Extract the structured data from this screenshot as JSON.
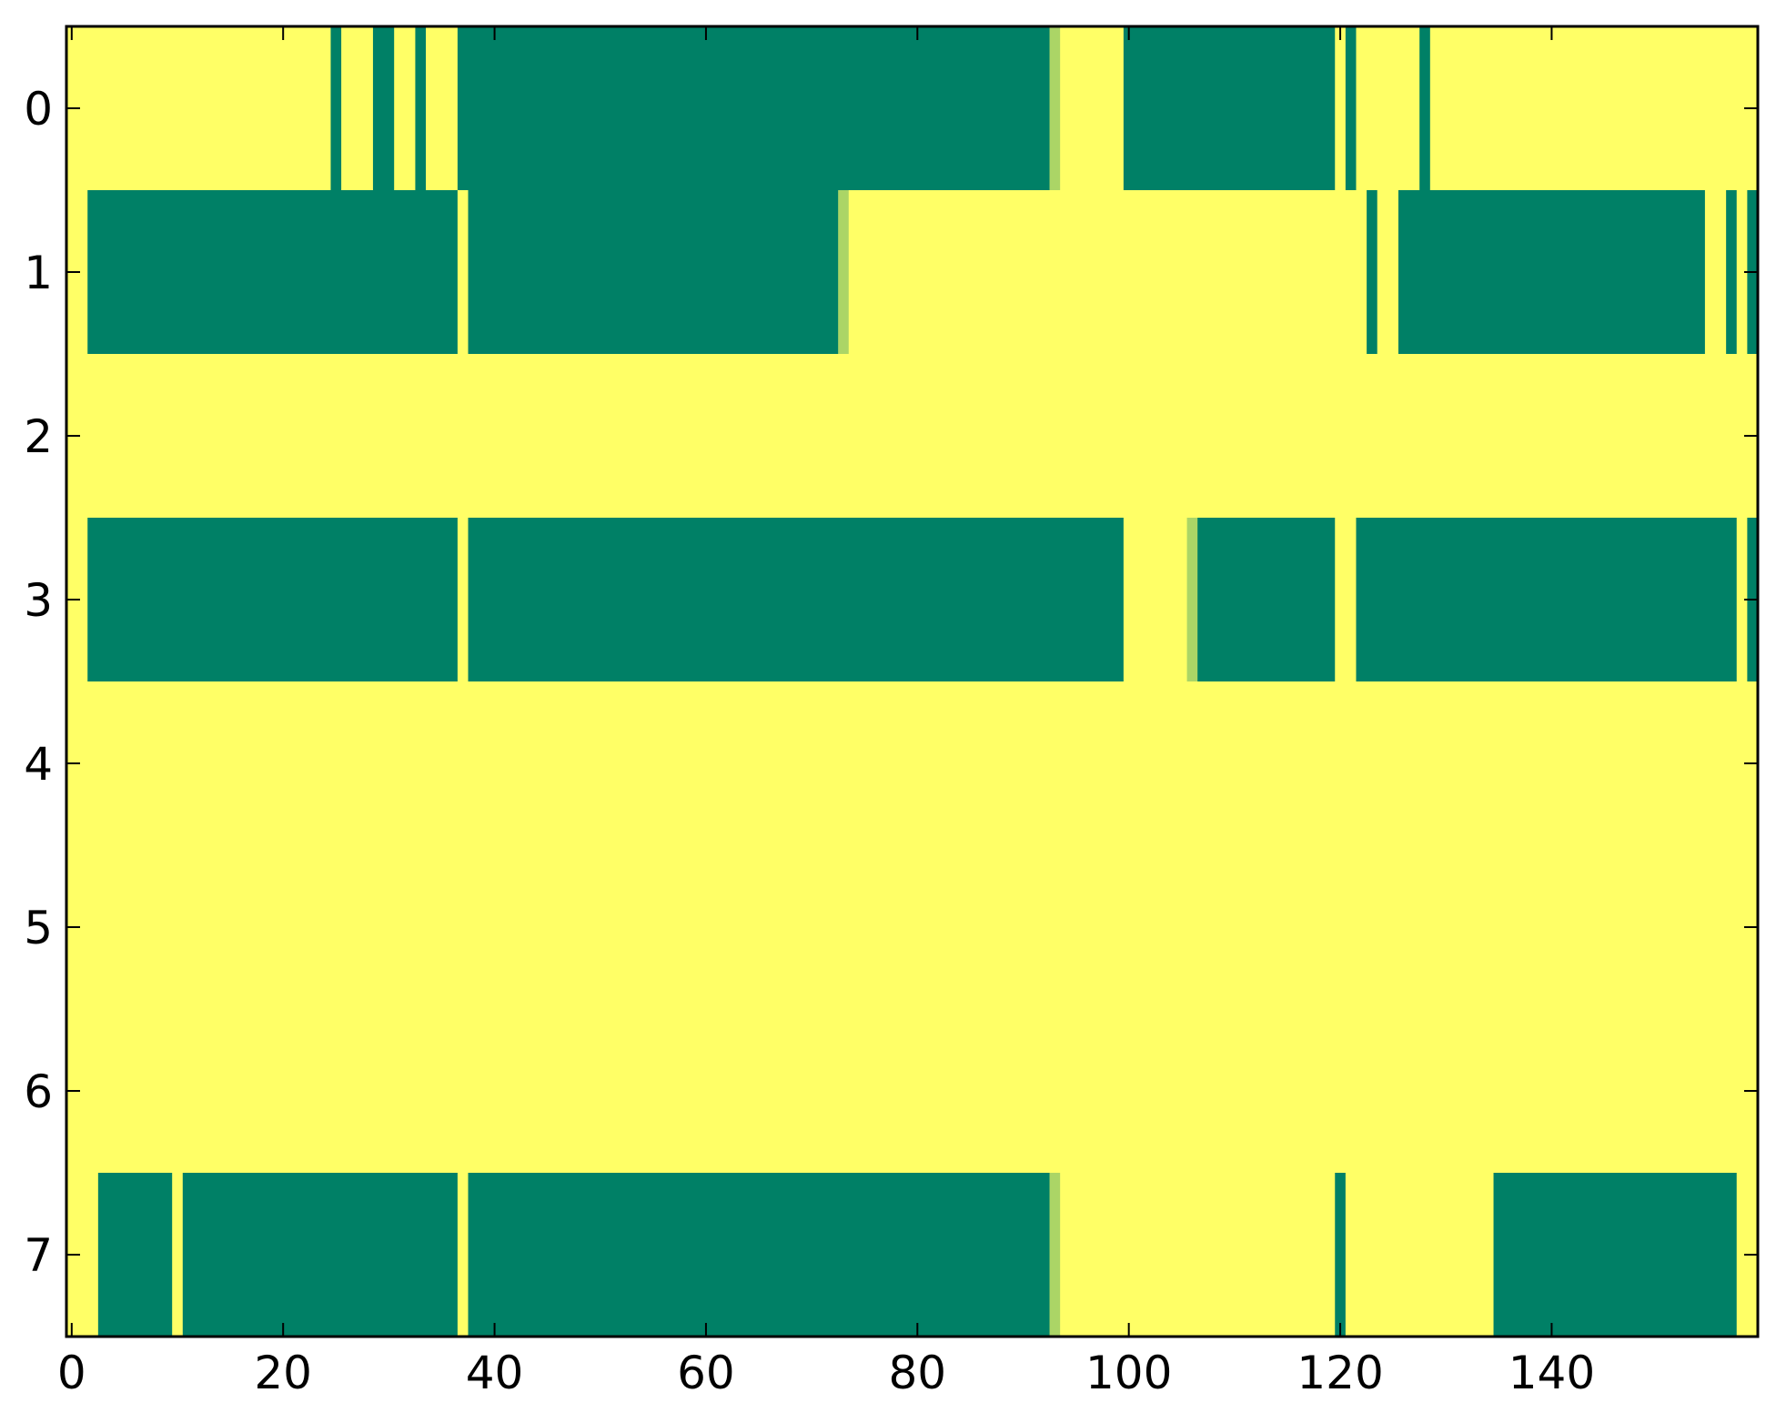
{
  "chart_data": {
    "type": "heatmap",
    "title": "",
    "xlabel": "",
    "ylabel": "",
    "n_rows": 8,
    "n_cols": 160,
    "xlim": [
      -0.5,
      159.5
    ],
    "ylim": [
      7.5,
      -0.5
    ],
    "grid": false,
    "colormap": "summer",
    "value_colors": {
      "0": "#008066",
      "0.67": "#acd566",
      "1": "#ffff66"
    },
    "x_ticks": [
      0,
      20,
      40,
      60,
      80,
      100,
      120,
      140
    ],
    "x_tick_labels": [
      "0",
      "20",
      "40",
      "60",
      "80",
      "100",
      "120",
      "140"
    ],
    "y_ticks": [
      0,
      1,
      2,
      3,
      4,
      5,
      6,
      7
    ],
    "y_tick_labels": [
      "0",
      "1",
      "2",
      "3",
      "4",
      "5",
      "6",
      "7"
    ],
    "rows_run_length": [
      [
        [
          0,
          24,
          1
        ],
        [
          25,
          25,
          0
        ],
        [
          26,
          28,
          1
        ],
        [
          29,
          30,
          0
        ],
        [
          31,
          32,
          1
        ],
        [
          33,
          33,
          0
        ],
        [
          34,
          36,
          1
        ],
        [
          37,
          92,
          0
        ],
        [
          93,
          93,
          0.67
        ],
        [
          94,
          99,
          1
        ],
        [
          100,
          119,
          0
        ],
        [
          120,
          120,
          1
        ],
        [
          121,
          121,
          0
        ],
        [
          122,
          127,
          1
        ],
        [
          128,
          128,
          0
        ],
        [
          129,
          159,
          1
        ]
      ],
      [
        [
          0,
          1,
          1
        ],
        [
          2,
          36,
          0
        ],
        [
          37,
          37,
          1
        ],
        [
          38,
          72,
          0
        ],
        [
          73,
          73,
          0.67
        ],
        [
          74,
          122,
          1
        ],
        [
          123,
          123,
          0
        ],
        [
          124,
          125,
          1
        ],
        [
          126,
          154,
          0
        ],
        [
          155,
          156,
          1
        ],
        [
          157,
          157,
          0
        ],
        [
          158,
          158,
          1
        ],
        [
          159,
          159,
          0
        ]
      ],
      [
        [
          0,
          159,
          1
        ]
      ],
      [
        [
          0,
          1,
          1
        ],
        [
          2,
          36,
          0
        ],
        [
          37,
          37,
          1
        ],
        [
          38,
          99,
          0
        ],
        [
          100,
          105,
          1
        ],
        [
          106,
          106,
          0.67
        ],
        [
          107,
          119,
          0
        ],
        [
          120,
          121,
          1
        ],
        [
          122,
          157,
          0
        ],
        [
          158,
          158,
          1
        ],
        [
          159,
          159,
          0
        ]
      ],
      [
        [
          0,
          159,
          1
        ]
      ],
      [
        [
          0,
          159,
          1
        ]
      ],
      [
        [
          0,
          159,
          1
        ]
      ],
      [
        [
          0,
          2,
          1
        ],
        [
          3,
          9,
          0
        ],
        [
          10,
          10,
          1
        ],
        [
          11,
          36,
          0
        ],
        [
          37,
          37,
          1
        ],
        [
          38,
          92,
          0
        ],
        [
          93,
          93,
          0.67
        ],
        [
          94,
          119,
          1
        ],
        [
          120,
          120,
          0
        ],
        [
          121,
          134,
          1
        ],
        [
          135,
          157,
          0
        ],
        [
          158,
          159,
          1
        ]
      ]
    ]
  }
}
